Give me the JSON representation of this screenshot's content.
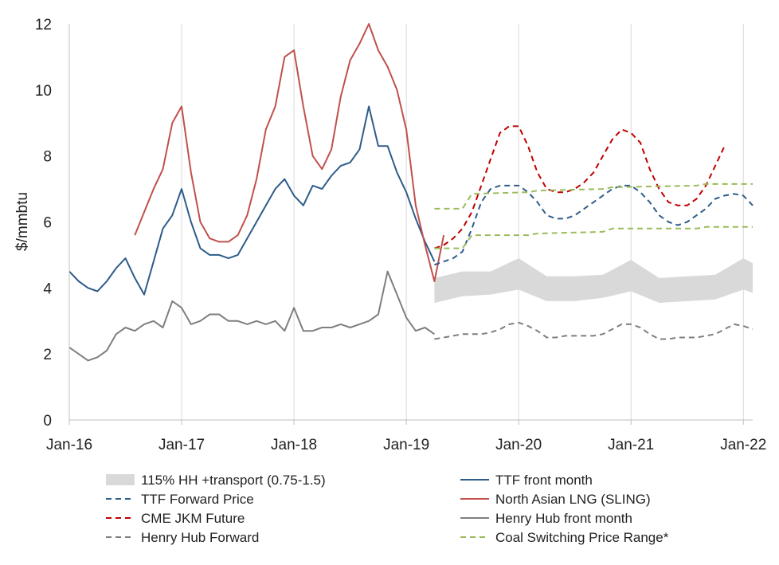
{
  "chart_data": {
    "type": "line",
    "ylabel": "$/mmbtu",
    "ylim": [
      0,
      12
    ],
    "yticks": [
      0,
      2,
      4,
      6,
      8,
      10,
      12
    ],
    "xlim": [
      "2016-01",
      "2022-02"
    ],
    "xticks": [
      {
        "label": "Jan-16",
        "date": "2016-01"
      },
      {
        "label": "Jan-17",
        "date": "2017-01"
      },
      {
        "label": "Jan-18",
        "date": "2018-01"
      },
      {
        "label": "Jan-19",
        "date": "2019-01"
      },
      {
        "label": "Jan-20",
        "date": "2020-01"
      },
      {
        "label": "Jan-21",
        "date": "2021-01"
      },
      {
        "label": "Jan-22",
        "date": "2022-01"
      }
    ],
    "grid": "vertical",
    "legend_position": "bottom",
    "colors": {
      "ttf": "#2e5c8a",
      "sling": "#c0504d",
      "jkm": "#c00000",
      "hh": "#7f7f7f",
      "coal": "#9bbb59",
      "band": "#d9d9d9"
    },
    "band": {
      "name": "115% HH +transport (0.75-1.5)",
      "x": [
        "2019-04",
        "2019-07",
        "2019-10",
        "2020-01",
        "2020-04",
        "2020-07",
        "2020-10",
        "2021-01",
        "2021-04",
        "2021-07",
        "2021-10",
        "2022-01",
        "2022-02"
      ],
      "low": [
        3.55,
        3.75,
        3.8,
        3.95,
        3.6,
        3.6,
        3.7,
        3.9,
        3.55,
        3.6,
        3.65,
        3.95,
        3.85
      ],
      "high": [
        4.3,
        4.5,
        4.5,
        4.9,
        4.35,
        4.35,
        4.4,
        4.85,
        4.3,
        4.35,
        4.4,
        4.9,
        4.75
      ]
    },
    "series": [
      {
        "key": "ttf",
        "name": "TTF front month",
        "style": "solid",
        "points": [
          [
            "2016-01",
            4.5
          ],
          [
            "2016-02",
            4.2
          ],
          [
            "2016-03",
            4.0
          ],
          [
            "2016-04",
            3.9
          ],
          [
            "2016-05",
            4.2
          ],
          [
            "2016-06",
            4.6
          ],
          [
            "2016-07",
            4.9
          ],
          [
            "2016-08",
            4.3
          ],
          [
            "2016-09",
            3.8
          ],
          [
            "2016-10",
            4.8
          ],
          [
            "2016-11",
            5.8
          ],
          [
            "2016-12",
            6.2
          ],
          [
            "2017-01",
            7.0
          ],
          [
            "2017-02",
            6.0
          ],
          [
            "2017-03",
            5.2
          ],
          [
            "2017-04",
            5.0
          ],
          [
            "2017-05",
            5.0
          ],
          [
            "2017-06",
            4.9
          ],
          [
            "2017-07",
            5.0
          ],
          [
            "2017-08",
            5.5
          ],
          [
            "2017-09",
            6.0
          ],
          [
            "2017-10",
            6.5
          ],
          [
            "2017-11",
            7.0
          ],
          [
            "2017-12",
            7.3
          ],
          [
            "2018-01",
            6.8
          ],
          [
            "2018-02",
            6.5
          ],
          [
            "2018-03",
            7.1
          ],
          [
            "2018-04",
            7.0
          ],
          [
            "2018-05",
            7.4
          ],
          [
            "2018-06",
            7.7
          ],
          [
            "2018-07",
            7.8
          ],
          [
            "2018-08",
            8.2
          ],
          [
            "2018-09",
            9.5
          ],
          [
            "2018-10",
            8.3
          ],
          [
            "2018-11",
            8.3
          ],
          [
            "2018-12",
            7.5
          ],
          [
            "2019-01",
            6.9
          ],
          [
            "2019-02",
            6.1
          ],
          [
            "2019-03",
            5.4
          ],
          [
            "2019-04",
            4.8
          ]
        ]
      },
      {
        "key": "sling",
        "name": "North Asian LNG (SLING)",
        "style": "solid",
        "points": [
          [
            "2016-08",
            5.6
          ],
          [
            "2016-09",
            6.3
          ],
          [
            "2016-10",
            7.0
          ],
          [
            "2016-11",
            7.6
          ],
          [
            "2016-12",
            9.0
          ],
          [
            "2017-01",
            9.5
          ],
          [
            "2017-02",
            7.5
          ],
          [
            "2017-03",
            6.0
          ],
          [
            "2017-04",
            5.5
          ],
          [
            "2017-05",
            5.4
          ],
          [
            "2017-06",
            5.4
          ],
          [
            "2017-07",
            5.6
          ],
          [
            "2017-08",
            6.2
          ],
          [
            "2017-09",
            7.3
          ],
          [
            "2017-10",
            8.8
          ],
          [
            "2017-11",
            9.5
          ],
          [
            "2017-12",
            11.0
          ],
          [
            "2018-01",
            11.2
          ],
          [
            "2018-02",
            9.5
          ],
          [
            "2018-03",
            8.0
          ],
          [
            "2018-04",
            7.6
          ],
          [
            "2018-05",
            8.2
          ],
          [
            "2018-06",
            9.8
          ],
          [
            "2018-07",
            10.9
          ],
          [
            "2018-08",
            11.4
          ],
          [
            "2018-09",
            12.0
          ],
          [
            "2018-10",
            11.2
          ],
          [
            "2018-11",
            10.7
          ],
          [
            "2018-12",
            10.0
          ],
          [
            "2019-01",
            8.8
          ],
          [
            "2019-02",
            6.5
          ],
          [
            "2019-03",
            5.3
          ],
          [
            "2019-04",
            4.2
          ],
          [
            "2019-05",
            5.6
          ]
        ]
      },
      {
        "key": "hh",
        "name": "Henry Hub front month",
        "style": "solid",
        "points": [
          [
            "2016-01",
            2.2
          ],
          [
            "2016-02",
            2.0
          ],
          [
            "2016-03",
            1.8
          ],
          [
            "2016-04",
            1.9
          ],
          [
            "2016-05",
            2.1
          ],
          [
            "2016-06",
            2.6
          ],
          [
            "2016-07",
            2.8
          ],
          [
            "2016-08",
            2.7
          ],
          [
            "2016-09",
            2.9
          ],
          [
            "2016-10",
            3.0
          ],
          [
            "2016-11",
            2.8
          ],
          [
            "2016-12",
            3.6
          ],
          [
            "2017-01",
            3.4
          ],
          [
            "2017-02",
            2.9
          ],
          [
            "2017-03",
            3.0
          ],
          [
            "2017-04",
            3.2
          ],
          [
            "2017-05",
            3.2
          ],
          [
            "2017-06",
            3.0
          ],
          [
            "2017-07",
            3.0
          ],
          [
            "2017-08",
            2.9
          ],
          [
            "2017-09",
            3.0
          ],
          [
            "2017-10",
            2.9
          ],
          [
            "2017-11",
            3.0
          ],
          [
            "2017-12",
            2.7
          ],
          [
            "2018-01",
            3.4
          ],
          [
            "2018-02",
            2.7
          ],
          [
            "2018-03",
            2.7
          ],
          [
            "2018-04",
            2.8
          ],
          [
            "2018-05",
            2.8
          ],
          [
            "2018-06",
            2.9
          ],
          [
            "2018-07",
            2.8
          ],
          [
            "2018-08",
            2.9
          ],
          [
            "2018-09",
            3.0
          ],
          [
            "2018-10",
            3.2
          ],
          [
            "2018-11",
            4.5
          ],
          [
            "2018-12",
            3.8
          ],
          [
            "2019-01",
            3.1
          ],
          [
            "2019-02",
            2.7
          ],
          [
            "2019-03",
            2.8
          ],
          [
            "2019-04",
            2.6
          ]
        ]
      },
      {
        "key": "ttf",
        "name": "TTF Forward Price",
        "style": "dashed",
        "points": [
          [
            "2019-04",
            4.7
          ],
          [
            "2019-05",
            4.8
          ],
          [
            "2019-06",
            4.9
          ],
          [
            "2019-07",
            5.1
          ],
          [
            "2019-08",
            5.8
          ],
          [
            "2019-09",
            6.6
          ],
          [
            "2019-10",
            7.0
          ],
          [
            "2019-11",
            7.1
          ],
          [
            "2019-12",
            7.1
          ],
          [
            "2020-01",
            7.1
          ],
          [
            "2020-02",
            6.9
          ],
          [
            "2020-03",
            6.6
          ],
          [
            "2020-04",
            6.2
          ],
          [
            "2020-05",
            6.1
          ],
          [
            "2020-06",
            6.1
          ],
          [
            "2020-07",
            6.2
          ],
          [
            "2020-08",
            6.4
          ],
          [
            "2020-09",
            6.6
          ],
          [
            "2020-10",
            6.8
          ],
          [
            "2020-11",
            7.0
          ],
          [
            "2020-12",
            7.1
          ],
          [
            "2021-01",
            7.1
          ],
          [
            "2021-02",
            6.9
          ],
          [
            "2021-03",
            6.6
          ],
          [
            "2021-04",
            6.2
          ],
          [
            "2021-05",
            6.0
          ],
          [
            "2021-06",
            5.9
          ],
          [
            "2021-07",
            6.0
          ],
          [
            "2021-08",
            6.2
          ],
          [
            "2021-09",
            6.4
          ],
          [
            "2021-10",
            6.7
          ],
          [
            "2021-11",
            6.8
          ],
          [
            "2021-12",
            6.85
          ],
          [
            "2022-01",
            6.8
          ],
          [
            "2022-02",
            6.5
          ]
        ]
      },
      {
        "key": "jkm",
        "name": "CME JKM Future",
        "style": "dashed",
        "points": [
          [
            "2019-04",
            5.2
          ],
          [
            "2019-05",
            5.3
          ],
          [
            "2019-06",
            5.5
          ],
          [
            "2019-07",
            5.8
          ],
          [
            "2019-08",
            6.3
          ],
          [
            "2019-09",
            7.1
          ],
          [
            "2019-10",
            7.9
          ],
          [
            "2019-11",
            8.7
          ],
          [
            "2019-12",
            8.9
          ],
          [
            "2020-01",
            8.9
          ],
          [
            "2020-02",
            8.3
          ],
          [
            "2020-03",
            7.5
          ],
          [
            "2020-04",
            7.0
          ],
          [
            "2020-05",
            6.9
          ],
          [
            "2020-06",
            6.9
          ],
          [
            "2020-07",
            7.0
          ],
          [
            "2020-08",
            7.2
          ],
          [
            "2020-09",
            7.5
          ],
          [
            "2020-10",
            8.0
          ],
          [
            "2020-11",
            8.5
          ],
          [
            "2020-12",
            8.8
          ],
          [
            "2021-01",
            8.7
          ],
          [
            "2021-02",
            8.4
          ],
          [
            "2021-03",
            7.6
          ],
          [
            "2021-04",
            7.0
          ],
          [
            "2021-05",
            6.6
          ],
          [
            "2021-06",
            6.5
          ],
          [
            "2021-07",
            6.5
          ],
          [
            "2021-08",
            6.7
          ],
          [
            "2021-09",
            7.1
          ],
          [
            "2021-10",
            7.7
          ],
          [
            "2021-11",
            8.3
          ]
        ]
      },
      {
        "key": "hh",
        "name": "Henry Hub Forward",
        "style": "dashed",
        "points": [
          [
            "2019-04",
            2.45
          ],
          [
            "2019-05",
            2.5
          ],
          [
            "2019-06",
            2.55
          ],
          [
            "2019-07",
            2.6
          ],
          [
            "2019-08",
            2.6
          ],
          [
            "2019-09",
            2.6
          ],
          [
            "2019-10",
            2.65
          ],
          [
            "2019-11",
            2.75
          ],
          [
            "2019-12",
            2.9
          ],
          [
            "2020-01",
            2.95
          ],
          [
            "2020-02",
            2.85
          ],
          [
            "2020-03",
            2.7
          ],
          [
            "2020-04",
            2.5
          ],
          [
            "2020-05",
            2.5
          ],
          [
            "2020-06",
            2.55
          ],
          [
            "2020-07",
            2.55
          ],
          [
            "2020-08",
            2.55
          ],
          [
            "2020-09",
            2.55
          ],
          [
            "2020-10",
            2.6
          ],
          [
            "2020-11",
            2.75
          ],
          [
            "2020-12",
            2.9
          ],
          [
            "2021-01",
            2.9
          ],
          [
            "2021-02",
            2.8
          ],
          [
            "2021-03",
            2.6
          ],
          [
            "2021-04",
            2.45
          ],
          [
            "2021-05",
            2.45
          ],
          [
            "2021-06",
            2.5
          ],
          [
            "2021-07",
            2.5
          ],
          [
            "2021-08",
            2.5
          ],
          [
            "2021-09",
            2.55
          ],
          [
            "2021-10",
            2.6
          ],
          [
            "2021-11",
            2.75
          ],
          [
            "2021-12",
            2.9
          ],
          [
            "2022-01",
            2.85
          ],
          [
            "2022-02",
            2.75
          ]
        ]
      },
      {
        "key": "coal",
        "name": "Coal Switching Price Range*",
        "style": "dashed",
        "points": [
          [
            "2019-04",
            5.2
          ],
          [
            "2019-07",
            5.2
          ],
          [
            "2019-08",
            5.6
          ],
          [
            "2020-02",
            5.6
          ],
          [
            "2020-03",
            5.65
          ],
          [
            "2020-10",
            5.7
          ],
          [
            "2020-11",
            5.8
          ],
          [
            "2021-08",
            5.8
          ],
          [
            "2021-09",
            5.85
          ],
          [
            "2022-02",
            5.85
          ]
        ]
      },
      {
        "key": "coal",
        "name": "",
        "style": "dashed",
        "points": [
          [
            "2019-04",
            6.4
          ],
          [
            "2019-07",
            6.4
          ],
          [
            "2019-08",
            6.85
          ],
          [
            "2020-02",
            6.9
          ],
          [
            "2020-03",
            6.95
          ],
          [
            "2020-10",
            7.0
          ],
          [
            "2020-11",
            7.05
          ],
          [
            "2021-08",
            7.1
          ],
          [
            "2021-09",
            7.15
          ],
          [
            "2022-02",
            7.15
          ]
        ]
      }
    ],
    "legend": [
      {
        "label": "115% HH +transport (0.75-1.5)",
        "key": "band",
        "style": "band"
      },
      {
        "label": "TTF front month",
        "key": "ttf",
        "style": "solid"
      },
      {
        "label": "TTF Forward Price",
        "key": "ttf",
        "style": "dashed"
      },
      {
        "label": "North Asian LNG (SLING)",
        "key": "sling",
        "style": "solid"
      },
      {
        "label": "CME JKM Future",
        "key": "jkm",
        "style": "dashed"
      },
      {
        "label": "Henry Hub front month",
        "key": "hh",
        "style": "solid"
      },
      {
        "label": "Henry Hub Forward",
        "key": "hh",
        "style": "dashed"
      },
      {
        "label": "Coal Switching Price Range*",
        "key": "coal",
        "style": "dashed"
      }
    ]
  }
}
